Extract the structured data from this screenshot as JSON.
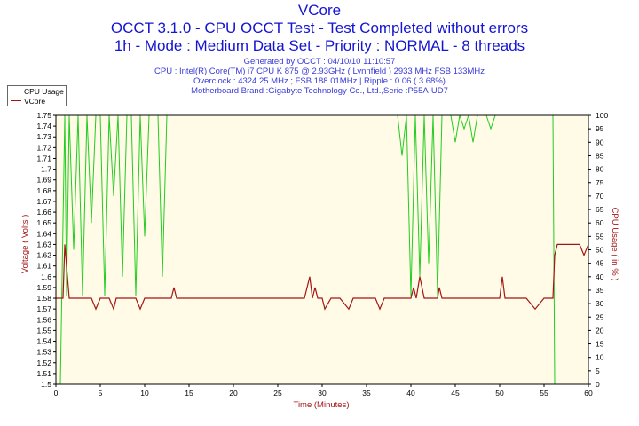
{
  "title": "VCore",
  "subtitle1": "OCCT 3.1.0 - CPU OCCT Test - Test Completed without errors",
  "subtitle2": "1h - Mode : Medium Data Set - Priority : NORMAL - 8 threads",
  "info": {
    "generated": "Generated by OCCT : 04/10/10 11:10:57",
    "cpu": "CPU : Intel(R) Core(TM) i7 CPU K 875 @ 2.93GHz ( Lynnfield ) 2933 MHz FSB 133MHz",
    "overclock": "Overclock : 4324.25 MHz ; FSB 188.01MHz | Ripple : 0.06 ( 3.68%)",
    "motherboard": "Motherboard Brand :Gigabyte Technology Co., Ltd.,Serie :P55A-UD7"
  },
  "colors": {
    "title": "#1414d2",
    "cpu_usage": "#22cc22",
    "vcore": "#a31515",
    "plot_bg": "#fffbe6"
  },
  "chart_data": {
    "type": "line",
    "xlabel": "Time (Minutes)",
    "ylabel_left": "Voltage ( Volts )",
    "ylabel_right": "CPU Usage ( in % )",
    "xlim": [
      0,
      60
    ],
    "ylim_left": [
      1.5,
      1.75
    ],
    "ylim_right": [
      0,
      100
    ],
    "x_ticks": [
      "0",
      "5",
      "10",
      "15",
      "20",
      "25",
      "30",
      "35",
      "40",
      "45",
      "50",
      "55",
      "60"
    ],
    "y_left_ticks": [
      "1.75",
      "1.74",
      "1.73",
      "1.72",
      "1.71",
      "1.7",
      "1.69",
      "1.68",
      "1.67",
      "1.66",
      "1.65",
      "1.64",
      "1.63",
      "1.62",
      "1.61",
      "1.6",
      "1.59",
      "1.58",
      "1.57",
      "1.56",
      "1.55",
      "1.54",
      "1.53",
      "1.52",
      "1.51",
      "1.5"
    ],
    "y_right_ticks": [
      "100",
      "95",
      "90",
      "85",
      "80",
      "75",
      "70",
      "65",
      "60",
      "55",
      "50",
      "45",
      "40",
      "35",
      "30",
      "25",
      "20",
      "15",
      "10",
      "5",
      "0"
    ],
    "legend": [
      "CPU Usage",
      "VCore"
    ],
    "legend_position": "top-left",
    "grid": false,
    "series": [
      {
        "name": "CPU Usage",
        "axis": "right",
        "x": [
          0.5,
          1,
          1.2,
          1.5,
          2,
          2.5,
          3,
          3.5,
          4,
          4.5,
          5,
          5.5,
          6,
          6.5,
          7,
          7.5,
          8,
          8.5,
          9,
          9.5,
          10,
          10.5,
          11,
          11.5,
          12,
          12.5,
          13,
          13.5,
          14,
          14.5,
          15,
          15.5,
          16,
          16.5,
          17,
          17.5,
          18,
          18.5,
          19,
          19.5,
          20,
          20.5,
          21,
          21.5,
          22,
          22.5,
          23,
          23.5,
          24,
          24.5,
          25,
          25.5,
          26,
          26.5,
          27,
          27.5,
          28,
          28.5,
          29,
          29.5,
          30,
          30.5,
          31,
          31.5,
          32,
          32.5,
          33,
          33.5,
          34,
          34.5,
          35,
          35.5,
          36,
          36.5,
          37,
          37.5,
          38,
          38.5,
          39,
          39.5,
          40,
          40.5,
          41,
          41.5,
          42,
          42.5,
          43,
          43.5,
          44,
          44.5,
          45,
          45.5,
          46,
          46.5,
          47,
          47.5,
          48,
          48.5,
          49,
          49.5,
          50,
          50.5,
          51,
          51.5,
          52,
          52.5,
          53,
          53.5,
          54,
          54.5,
          55,
          55.5,
          56,
          56.2,
          56.5,
          57,
          58,
          59,
          60
        ],
        "y": [
          0,
          100,
          33,
          100,
          50,
          100,
          33,
          100,
          60,
          100,
          100,
          33,
          100,
          70,
          100,
          40,
          100,
          100,
          33,
          100,
          55,
          100,
          100,
          100,
          40,
          100,
          100,
          100,
          100,
          100,
          100,
          100,
          100,
          100,
          100,
          100,
          100,
          100,
          100,
          100,
          100,
          100,
          100,
          100,
          100,
          100,
          100,
          100,
          100,
          100,
          100,
          100,
          100,
          100,
          100,
          100,
          100,
          100,
          100,
          100,
          100,
          100,
          100,
          100,
          100,
          100,
          100,
          100,
          100,
          100,
          100,
          100,
          100,
          100,
          100,
          100,
          100,
          100,
          85,
          100,
          33,
          100,
          40,
          100,
          45,
          100,
          33,
          100,
          100,
          100,
          90,
          100,
          95,
          100,
          90,
          100,
          100,
          100,
          95,
          100,
          100,
          100,
          100,
          100,
          100,
          100,
          100,
          100,
          100,
          100,
          100,
          100,
          100,
          0,
          0,
          0,
          0,
          0,
          0
        ]
      },
      {
        "name": "VCore",
        "axis": "left",
        "x": [
          0,
          0.8,
          1,
          1.5,
          2,
          3,
          4,
          4.5,
          5,
          6,
          6.5,
          6.8,
          7,
          8,
          9,
          9.5,
          10,
          11,
          12,
          12.5,
          13,
          13.3,
          13.6,
          14,
          15,
          16,
          17,
          18,
          19,
          20,
          21,
          22,
          23,
          24,
          25,
          26,
          27,
          28,
          28.6,
          28.9,
          29.2,
          29.5,
          30,
          30.3,
          31,
          32,
          33,
          33.5,
          34,
          35,
          36,
          36.5,
          37,
          38,
          39,
          40,
          40.3,
          40.6,
          41,
          41.5,
          42,
          43,
          43.2,
          43.5,
          44,
          45,
          46,
          47,
          48,
          49,
          50,
          50.3,
          50.6,
          51,
          52,
          53,
          54,
          55,
          56,
          56.2,
          56.5,
          57,
          58,
          59,
          59.5,
          60
        ],
        "y": [
          1.58,
          1.58,
          1.63,
          1.58,
          1.58,
          1.58,
          1.58,
          1.57,
          1.58,
          1.58,
          1.57,
          1.58,
          1.58,
          1.58,
          1.58,
          1.57,
          1.58,
          1.58,
          1.58,
          1.58,
          1.58,
          1.59,
          1.58,
          1.58,
          1.58,
          1.58,
          1.58,
          1.58,
          1.58,
          1.58,
          1.58,
          1.58,
          1.58,
          1.58,
          1.58,
          1.58,
          1.58,
          1.58,
          1.6,
          1.58,
          1.59,
          1.58,
          1.58,
          1.57,
          1.58,
          1.58,
          1.57,
          1.58,
          1.58,
          1.58,
          1.58,
          1.57,
          1.58,
          1.58,
          1.58,
          1.58,
          1.59,
          1.58,
          1.6,
          1.58,
          1.58,
          1.58,
          1.59,
          1.58,
          1.58,
          1.58,
          1.58,
          1.58,
          1.58,
          1.58,
          1.58,
          1.6,
          1.58,
          1.58,
          1.58,
          1.58,
          1.57,
          1.58,
          1.58,
          1.62,
          1.63,
          1.63,
          1.63,
          1.63,
          1.62,
          1.63
        ]
      }
    ]
  }
}
